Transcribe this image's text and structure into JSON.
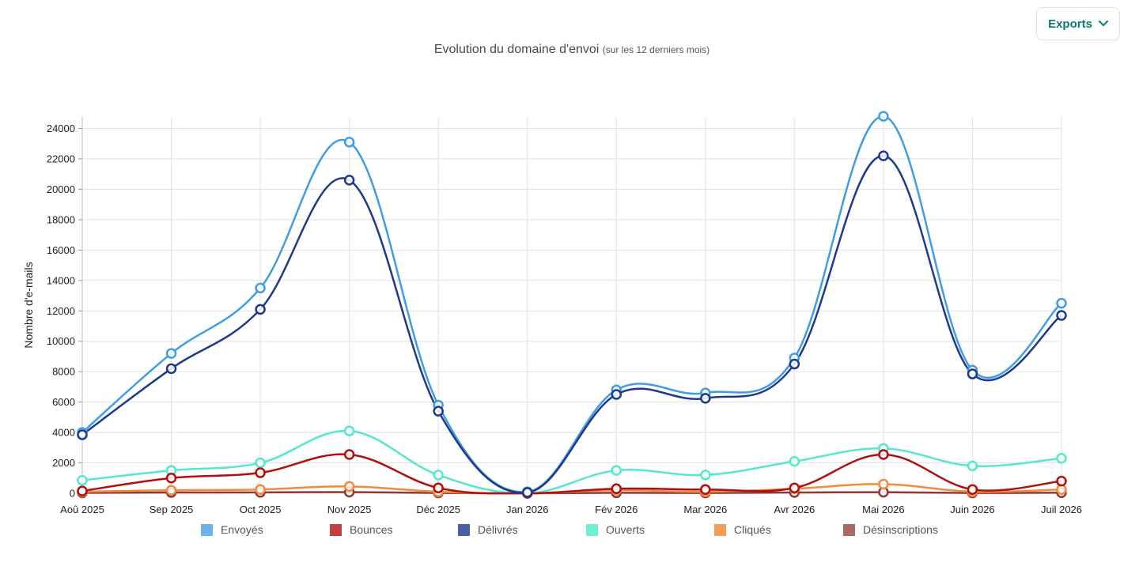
{
  "toolbar": {
    "exports_label": "Exports",
    "exports_icon": "chevron-down-icon"
  },
  "chart_data": {
    "type": "line",
    "title": "Evolution du domaine d'envoi",
    "subtitle": "(sur les 12 derniers mois)",
    "xlabel": "",
    "ylabel": "Nombre d'e-mails",
    "ylim": [
      0,
      25000
    ],
    "yticks": [
      "0",
      "2000",
      "4000",
      "6000",
      "8000",
      "10000",
      "12000",
      "14000",
      "16000",
      "18000",
      "20000",
      "22000",
      "24000"
    ],
    "categories": [
      "Aoû 2025",
      "Sep 2025",
      "Oct 2025",
      "Nov 2025",
      "Déc 2025",
      "Jan 2026",
      "Fév 2026",
      "Mar 2026",
      "Avr 2026",
      "Mai 2026",
      "Juin 2026",
      "Juil 2026"
    ],
    "grid": true,
    "legend_position": "bottom",
    "series": [
      {
        "name": "Envoyés",
        "color": "#3f9ee3",
        "legend_color": "#6ab4ec",
        "values": [
          4000,
          9200,
          13500,
          23100,
          5800,
          100,
          6800,
          6600,
          8900,
          24800,
          8100,
          12500
        ]
      },
      {
        "name": "Bounces",
        "color": "#b10f0f",
        "legend_color": "#c44040",
        "values": [
          150,
          1000,
          1350,
          2550,
          350,
          0,
          300,
          250,
          350,
          2550,
          250,
          800
        ]
      },
      {
        "name": "Délivrés",
        "color": "#1f3a88",
        "legend_color": "#4a5fa3",
        "values": [
          3850,
          8200,
          12100,
          20600,
          5400,
          50,
          6500,
          6250,
          8500,
          22200,
          7850,
          11700
        ]
      },
      {
        "name": "Ouverts",
        "color": "#55e8cc",
        "legend_color": "#6ef0d6",
        "values": [
          850,
          1500,
          2000,
          4100,
          1200,
          0,
          1500,
          1200,
          2100,
          2950,
          1800,
          2300
        ]
      },
      {
        "name": "Cliqués",
        "color": "#f5893c",
        "legend_color": "#f89a58",
        "values": [
          100,
          200,
          250,
          450,
          100,
          0,
          200,
          100,
          300,
          600,
          100,
          250
        ]
      },
      {
        "name": "Désinscriptions",
        "color": "#8a3a3a",
        "legend_color": "#a66a6a",
        "values": [
          30,
          50,
          60,
          80,
          20,
          0,
          30,
          20,
          50,
          70,
          20,
          40
        ]
      }
    ]
  }
}
